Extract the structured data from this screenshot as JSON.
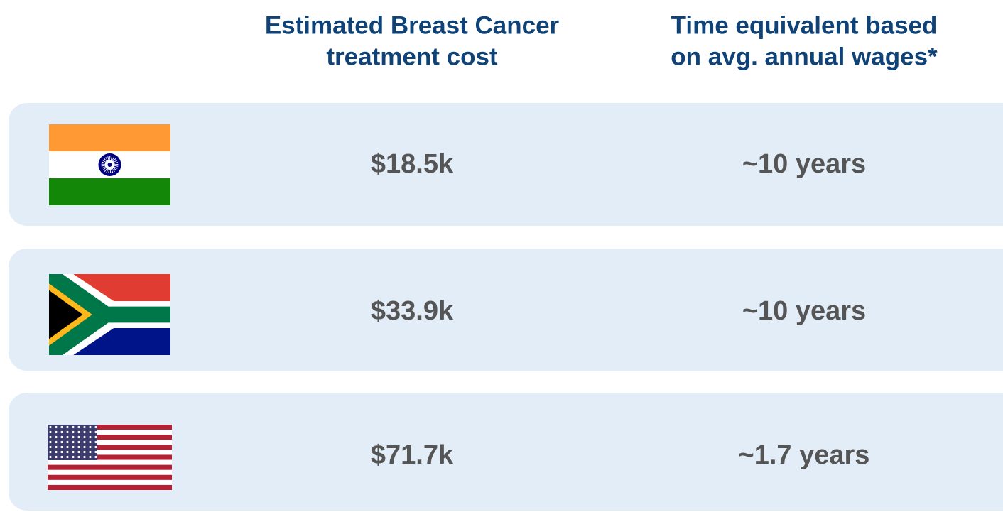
{
  "table": {
    "headers": [
      [
        "Estimated Breast Cancer",
        "treatment cost"
      ],
      [
        "Time equivalent based",
        "on avg. annual wages*"
      ]
    ],
    "rows": [
      [
        "$18.5k",
        "~10 years"
      ],
      [
        "$33.9k",
        "~10 years"
      ],
      [
        "$71.7k",
        "~1.7 years"
      ]
    ]
  }
}
